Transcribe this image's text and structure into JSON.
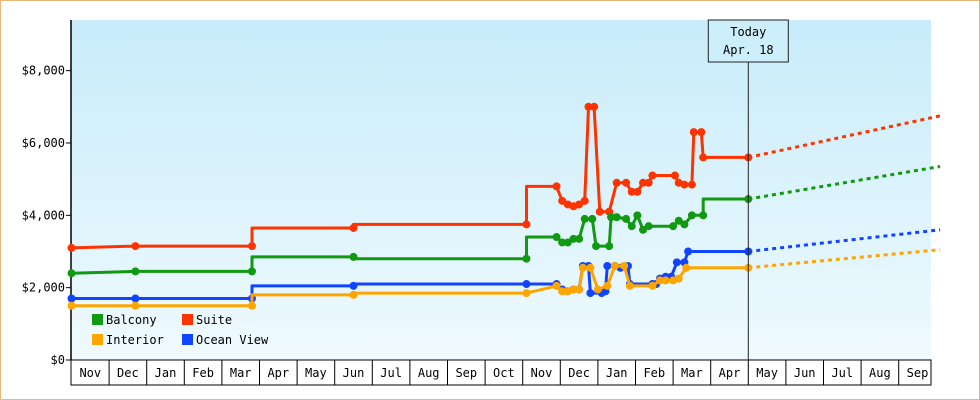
{
  "chart_data": {
    "type": "line",
    "title": "",
    "xlabel": "",
    "ylabel": "",
    "ylim": [
      0,
      9400
    ],
    "y_ticks": [
      {
        "value": 0,
        "label": "$0"
      },
      {
        "value": 2000,
        "label": "$2,000"
      },
      {
        "value": 4000,
        "label": "$4,000"
      },
      {
        "value": 6000,
        "label": "$6,000"
      },
      {
        "value": 8000,
        "label": "$8,000"
      }
    ],
    "x_ticks": [
      "Nov",
      "Dec",
      "Jan",
      "Feb",
      "Mar",
      "Apr",
      "May",
      "Jun",
      "Jul",
      "Aug",
      "Sep",
      "Oct",
      "Nov",
      "Dec",
      "Jan",
      "Feb",
      "Mar",
      "Apr",
      "May",
      "Jun",
      "Jul",
      "Aug",
      "Sep"
    ],
    "x_unit": "months since first Nov",
    "today": {
      "label": "Today",
      "date": "Apr. 18",
      "x": 17.5
    },
    "legend": {
      "position": "bottom-left"
    },
    "grid": false,
    "series": [
      {
        "name": "Suite",
        "color": "#ff3300",
        "points": [
          [
            -0.5,
            3100
          ],
          [
            1.2,
            3150
          ],
          [
            4.3,
            3150
          ],
          [
            4.3,
            3650
          ],
          [
            7.0,
            3650
          ],
          [
            7.0,
            3750
          ],
          [
            11.6,
            3750
          ],
          [
            11.6,
            4800
          ],
          [
            12.4,
            4800
          ],
          [
            12.55,
            4400
          ],
          [
            12.7,
            4300
          ],
          [
            12.85,
            4250
          ],
          [
            13.0,
            4300
          ],
          [
            13.15,
            4400
          ],
          [
            13.25,
            7000
          ],
          [
            13.4,
            7000
          ],
          [
            13.55,
            4100
          ],
          [
            13.8,
            4100
          ],
          [
            14.0,
            4900
          ],
          [
            14.25,
            4900
          ],
          [
            14.4,
            4650
          ],
          [
            14.55,
            4650
          ],
          [
            14.7,
            4900
          ],
          [
            14.85,
            4900
          ],
          [
            14.95,
            5100
          ],
          [
            15.55,
            5100
          ],
          [
            15.65,
            4900
          ],
          [
            15.8,
            4850
          ],
          [
            16.0,
            4850
          ],
          [
            16.05,
            6300
          ],
          [
            16.25,
            6300
          ],
          [
            16.3,
            5600
          ],
          [
            17.5,
            5600
          ]
        ],
        "projection": [
          [
            17.5,
            5600
          ],
          [
            22.6,
            6750
          ]
        ]
      },
      {
        "name": "Balcony",
        "color": "#119911",
        "points": [
          [
            -0.5,
            2400
          ],
          [
            1.2,
            2450
          ],
          [
            4.3,
            2450
          ],
          [
            4.3,
            2850
          ],
          [
            7.0,
            2850
          ],
          [
            7.0,
            2800
          ],
          [
            11.6,
            2800
          ],
          [
            11.6,
            3400
          ],
          [
            12.4,
            3400
          ],
          [
            12.55,
            3250
          ],
          [
            12.7,
            3250
          ],
          [
            12.85,
            3350
          ],
          [
            13.0,
            3350
          ],
          [
            13.15,
            3900
          ],
          [
            13.35,
            3900
          ],
          [
            13.45,
            3150
          ],
          [
            13.8,
            3150
          ],
          [
            13.85,
            3950
          ],
          [
            14.0,
            3950
          ],
          [
            14.25,
            3900
          ],
          [
            14.4,
            3700
          ],
          [
            14.55,
            4000
          ],
          [
            14.7,
            3600
          ],
          [
            14.85,
            3700
          ],
          [
            15.5,
            3700
          ],
          [
            15.65,
            3850
          ],
          [
            15.8,
            3750
          ],
          [
            16.0,
            4000
          ],
          [
            16.3,
            4000
          ],
          [
            16.3,
            4450
          ],
          [
            17.5,
            4450
          ]
        ],
        "projection": [
          [
            17.5,
            4450
          ],
          [
            22.6,
            5350
          ]
        ]
      },
      {
        "name": "Ocean View",
        "color": "#1144ff",
        "points": [
          [
            -0.5,
            1700
          ],
          [
            1.2,
            1700
          ],
          [
            4.3,
            1700
          ],
          [
            4.3,
            2050
          ],
          [
            7.0,
            2050
          ],
          [
            7.0,
            2100
          ],
          [
            11.6,
            2100
          ],
          [
            12.4,
            2100
          ],
          [
            12.55,
            1950
          ],
          [
            12.7,
            1900
          ],
          [
            12.85,
            1950
          ],
          [
            13.0,
            1950
          ],
          [
            13.1,
            2600
          ],
          [
            13.25,
            2600
          ],
          [
            13.3,
            1850
          ],
          [
            13.6,
            1850
          ],
          [
            13.7,
            1900
          ],
          [
            13.75,
            2600
          ],
          [
            13.95,
            2600
          ],
          [
            14.1,
            2550
          ],
          [
            14.3,
            2600
          ],
          [
            14.35,
            2100
          ],
          [
            14.95,
            2100
          ],
          [
            15.05,
            2100
          ],
          [
            15.15,
            2250
          ],
          [
            15.3,
            2300
          ],
          [
            15.45,
            2300
          ],
          [
            15.6,
            2700
          ],
          [
            15.8,
            2700
          ],
          [
            15.9,
            3000
          ],
          [
            17.5,
            3000
          ]
        ],
        "projection": [
          [
            17.5,
            3000
          ],
          [
            22.6,
            3600
          ]
        ]
      },
      {
        "name": "Interior",
        "color": "#ffa500",
        "points": [
          [
            -0.5,
            1500
          ],
          [
            1.2,
            1500
          ],
          [
            4.3,
            1500
          ],
          [
            4.3,
            1800
          ],
          [
            7.0,
            1800
          ],
          [
            7.0,
            1850
          ],
          [
            11.6,
            1850
          ],
          [
            12.4,
            2050
          ],
          [
            12.55,
            1900
          ],
          [
            12.7,
            1900
          ],
          [
            12.85,
            1950
          ],
          [
            13.0,
            1950
          ],
          [
            13.1,
            2550
          ],
          [
            13.3,
            2550
          ],
          [
            13.5,
            1950
          ],
          [
            13.75,
            2050
          ],
          [
            13.95,
            2600
          ],
          [
            14.2,
            2600
          ],
          [
            14.35,
            2050
          ],
          [
            14.95,
            2050
          ],
          [
            15.15,
            2200
          ],
          [
            15.3,
            2200
          ],
          [
            15.5,
            2200
          ],
          [
            15.65,
            2250
          ],
          [
            15.85,
            2550
          ],
          [
            17.5,
            2550
          ]
        ],
        "projection": [
          [
            17.5,
            2550
          ],
          [
            22.6,
            3050
          ]
        ]
      }
    ]
  },
  "legend_items": [
    {
      "label": "Balcony",
      "color": "#119911"
    },
    {
      "label": "Suite",
      "color": "#ff3300"
    },
    {
      "label": "Interior",
      "color": "#ffa500"
    },
    {
      "label": "Ocean View",
      "color": "#1144ff"
    }
  ]
}
